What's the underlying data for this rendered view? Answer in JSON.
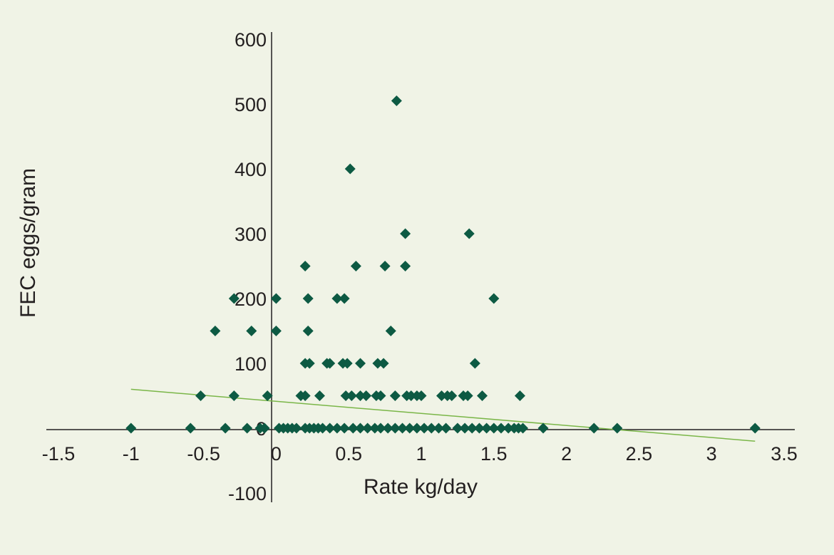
{
  "chart_data": {
    "type": "scatter",
    "title": "",
    "xlabel": "Rate kg/day",
    "ylabel": "FEC eggs/gram",
    "xlim": [
      -1.5,
      3.5
    ],
    "ylim": [
      -100,
      600
    ],
    "x_ticks": [
      "-1.5",
      "-1",
      "-0.5",
      "0",
      "0.5",
      "1",
      "1.5",
      "2",
      "2.5",
      "3",
      "3.5"
    ],
    "y_ticks": [
      "600",
      "500",
      "400",
      "300",
      "200",
      "100",
      "0",
      "-100"
    ],
    "grid": false,
    "legend": "none",
    "colors": {
      "points": "#0d5a43",
      "trendline": "#7ab648",
      "axes": "#231f20",
      "background": "#f0f3e6"
    },
    "series": [
      {
        "marker": "diamond",
        "points": [
          [
            -1.0,
            0
          ],
          [
            -0.59,
            0
          ],
          [
            -0.35,
            0
          ],
          [
            -0.2,
            0
          ],
          [
            -0.11,
            0
          ],
          [
            -0.08,
            0
          ],
          [
            0.02,
            0
          ],
          [
            0.05,
            0
          ],
          [
            0.08,
            0
          ],
          [
            0.11,
            0
          ],
          [
            0.14,
            0
          ],
          [
            0.2,
            0
          ],
          [
            0.23,
            0
          ],
          [
            0.26,
            0
          ],
          [
            0.29,
            0
          ],
          [
            0.32,
            0
          ],
          [
            0.37,
            0
          ],
          [
            0.42,
            0
          ],
          [
            0.47,
            0
          ],
          [
            0.53,
            0
          ],
          [
            0.58,
            0
          ],
          [
            0.63,
            0
          ],
          [
            0.68,
            0
          ],
          [
            0.72,
            0
          ],
          [
            0.77,
            0
          ],
          [
            0.82,
            0
          ],
          [
            0.87,
            0
          ],
          [
            0.92,
            0
          ],
          [
            0.97,
            0
          ],
          [
            1.02,
            0
          ],
          [
            1.07,
            0
          ],
          [
            1.12,
            0
          ],
          [
            1.17,
            0
          ],
          [
            1.25,
            0
          ],
          [
            1.3,
            0
          ],
          [
            1.35,
            0
          ],
          [
            1.4,
            0
          ],
          [
            1.45,
            0
          ],
          [
            1.5,
            0
          ],
          [
            1.55,
            0
          ],
          [
            1.6,
            0
          ],
          [
            1.64,
            0
          ],
          [
            1.67,
            0
          ],
          [
            1.7,
            0
          ],
          [
            1.84,
            0
          ],
          [
            2.19,
            0
          ],
          [
            2.35,
            0
          ],
          [
            3.3,
            0
          ],
          [
            -0.52,
            50
          ],
          [
            -0.29,
            50
          ],
          [
            -0.06,
            50
          ],
          [
            0.17,
            50
          ],
          [
            0.2,
            50
          ],
          [
            0.3,
            50
          ],
          [
            0.48,
            50
          ],
          [
            0.52,
            50
          ],
          [
            0.58,
            50
          ],
          [
            0.62,
            50
          ],
          [
            0.69,
            50
          ],
          [
            0.72,
            50
          ],
          [
            0.82,
            50
          ],
          [
            0.9,
            50
          ],
          [
            0.93,
            50
          ],
          [
            0.97,
            50
          ],
          [
            1.0,
            50
          ],
          [
            1.14,
            50
          ],
          [
            1.18,
            50
          ],
          [
            1.21,
            50
          ],
          [
            1.29,
            50
          ],
          [
            1.32,
            50
          ],
          [
            1.42,
            50
          ],
          [
            1.68,
            50
          ],
          [
            0.2,
            100
          ],
          [
            0.23,
            100
          ],
          [
            0.35,
            100
          ],
          [
            0.37,
            100
          ],
          [
            0.46,
            100
          ],
          [
            0.49,
            100
          ],
          [
            0.58,
            100
          ],
          [
            0.7,
            100
          ],
          [
            0.74,
            100
          ],
          [
            1.37,
            100
          ],
          [
            -0.42,
            150
          ],
          [
            -0.17,
            150
          ],
          [
            0.0,
            150
          ],
          [
            0.22,
            150
          ],
          [
            0.79,
            150
          ],
          [
            -0.29,
            200
          ],
          [
            0.0,
            200
          ],
          [
            0.22,
            200
          ],
          [
            0.42,
            200
          ],
          [
            0.47,
            200
          ],
          [
            1.5,
            200
          ],
          [
            0.2,
            250
          ],
          [
            0.55,
            250
          ],
          [
            0.75,
            250
          ],
          [
            0.89,
            250
          ],
          [
            0.89,
            300
          ],
          [
            1.33,
            300
          ],
          [
            0.51,
            400
          ],
          [
            0.83,
            505
          ]
        ]
      }
    ],
    "trendline": {
      "x": [
        -1.0,
        3.3
      ],
      "y": [
        60,
        -20
      ]
    }
  }
}
